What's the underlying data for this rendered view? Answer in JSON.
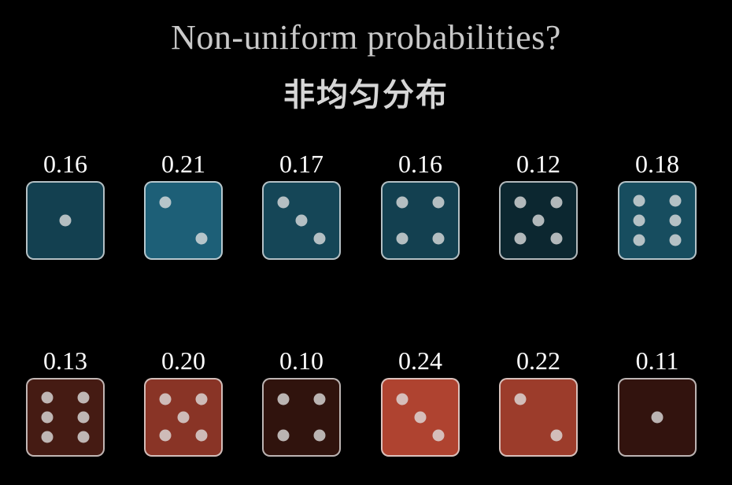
{
  "title": "Non-uniform probabilities?",
  "subtitle": "非均匀分布",
  "colors": {
    "background": "#000000",
    "blue_base": "#1b5a70",
    "red_base": "#8a3526"
  },
  "blue_dice": [
    {
      "face": 1,
      "probability": "0.16"
    },
    {
      "face": 2,
      "probability": "0.21"
    },
    {
      "face": 3,
      "probability": "0.17"
    },
    {
      "face": 4,
      "probability": "0.16"
    },
    {
      "face": 5,
      "probability": "0.12"
    },
    {
      "face": 6,
      "probability": "0.18"
    }
  ],
  "red_dice": [
    {
      "face": 6,
      "probability": "0.13"
    },
    {
      "face": 5,
      "probability": "0.20"
    },
    {
      "face": 4,
      "probability": "0.10"
    },
    {
      "face": 3,
      "probability": "0.24"
    },
    {
      "face": 2,
      "probability": "0.22"
    },
    {
      "face": 1,
      "probability": "0.11"
    }
  ]
}
